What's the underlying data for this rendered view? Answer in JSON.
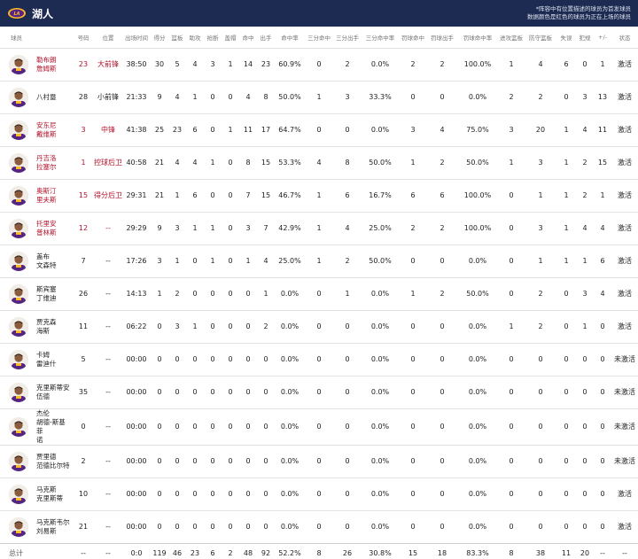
{
  "team": {
    "name": "湖人",
    "logo_icon": "lakers-logo-icon"
  },
  "notes": [
    "*阵容中有位置描述的球员为首发球员",
    "数据颜色是红色的球员为正在上场的球员"
  ],
  "columns": [
    "球员",
    "号码",
    "位置",
    "出场时间",
    "得分",
    "篮板",
    "助攻",
    "抢断",
    "盖帽",
    "命中",
    "出手",
    "命中率",
    "三分命中",
    "三分出手",
    "三分命中率",
    "罚球命中",
    "罚球出手",
    "罚球命中率",
    "进攻篮板",
    "防守篮板",
    "失误",
    "犯规",
    "+/-",
    "状态"
  ],
  "players": [
    {
      "name": "勒布朗\n詹姆斯",
      "number": "23",
      "position": "大前锋",
      "min": "38:50",
      "pts": "30",
      "reb": "5",
      "ast": "4",
      "stl": "3",
      "blk": "1",
      "fgm": "14",
      "fga": "23",
      "fgp": "60.9%",
      "tpm": "0",
      "tpa": "2",
      "tpp": "0.0%",
      "ftm": "2",
      "fta": "2",
      "ftp": "100.0%",
      "oreb": "1",
      "dreb": "4",
      "tov": "6",
      "pf": "0",
      "pm": "1",
      "status": "激活",
      "oncourt": true
    },
    {
      "name": "八村塁",
      "number": "28",
      "position": "小前锋",
      "min": "21:33",
      "pts": "9",
      "reb": "4",
      "ast": "1",
      "stl": "0",
      "blk": "0",
      "fgm": "4",
      "fga": "8",
      "fgp": "50.0%",
      "tpm": "1",
      "tpa": "3",
      "tpp": "33.3%",
      "ftm": "0",
      "fta": "0",
      "ftp": "0.0%",
      "oreb": "2",
      "dreb": "2",
      "tov": "0",
      "pf": "3",
      "pm": "13",
      "status": "激活",
      "oncourt": false
    },
    {
      "name": "安东尼\n戴维斯",
      "number": "3",
      "position": "中锋",
      "min": "41:38",
      "pts": "25",
      "reb": "23",
      "ast": "6",
      "stl": "0",
      "blk": "1",
      "fgm": "11",
      "fga": "17",
      "fgp": "64.7%",
      "tpm": "0",
      "tpa": "0",
      "tpp": "0.0%",
      "ftm": "3",
      "fta": "4",
      "ftp": "75.0%",
      "oreb": "3",
      "dreb": "20",
      "tov": "1",
      "pf": "4",
      "pm": "11",
      "status": "激活",
      "oncourt": true
    },
    {
      "name": "丹吉洛\n拉塞尔",
      "number": "1",
      "position": "控球后卫",
      "min": "40:58",
      "pts": "21",
      "reb": "4",
      "ast": "4",
      "stl": "1",
      "blk": "0",
      "fgm": "8",
      "fga": "15",
      "fgp": "53.3%",
      "tpm": "4",
      "tpa": "8",
      "tpp": "50.0%",
      "ftm": "1",
      "fta": "2",
      "ftp": "50.0%",
      "oreb": "1",
      "dreb": "3",
      "tov": "1",
      "pf": "2",
      "pm": "15",
      "status": "激活",
      "oncourt": true
    },
    {
      "name": "奥斯汀\n里夫斯",
      "number": "15",
      "position": "得分后卫",
      "min": "29:31",
      "pts": "21",
      "reb": "1",
      "ast": "6",
      "stl": "0",
      "blk": "0",
      "fgm": "7",
      "fga": "15",
      "fgp": "46.7%",
      "tpm": "1",
      "tpa": "6",
      "tpp": "16.7%",
      "ftm": "6",
      "fta": "6",
      "ftp": "100.0%",
      "oreb": "0",
      "dreb": "1",
      "tov": "1",
      "pf": "2",
      "pm": "1",
      "status": "激活",
      "oncourt": true
    },
    {
      "name": "托里安\n普林斯",
      "number": "12",
      "position": "--",
      "min": "29:29",
      "pts": "9",
      "reb": "3",
      "ast": "1",
      "stl": "1",
      "blk": "0",
      "fgm": "3",
      "fga": "7",
      "fgp": "42.9%",
      "tpm": "1",
      "tpa": "4",
      "tpp": "25.0%",
      "ftm": "2",
      "fta": "2",
      "ftp": "100.0%",
      "oreb": "0",
      "dreb": "3",
      "tov": "1",
      "pf": "4",
      "pm": "4",
      "status": "激活",
      "oncourt": true
    },
    {
      "name": "盖布\n文森特",
      "number": "7",
      "position": "--",
      "min": "17:26",
      "pts": "3",
      "reb": "1",
      "ast": "0",
      "stl": "1",
      "blk": "0",
      "fgm": "1",
      "fga": "4",
      "fgp": "25.0%",
      "tpm": "1",
      "tpa": "2",
      "tpp": "50.0%",
      "ftm": "0",
      "fta": "0",
      "ftp": "0.0%",
      "oreb": "0",
      "dreb": "1",
      "tov": "1",
      "pf": "1",
      "pm": "6",
      "status": "激活",
      "oncourt": false
    },
    {
      "name": "斯宾塞\n丁维迪",
      "number": "26",
      "position": "--",
      "min": "14:13",
      "pts": "1",
      "reb": "2",
      "ast": "0",
      "stl": "0",
      "blk": "0",
      "fgm": "0",
      "fga": "1",
      "fgp": "0.0%",
      "tpm": "0",
      "tpa": "1",
      "tpp": "0.0%",
      "ftm": "1",
      "fta": "2",
      "ftp": "50.0%",
      "oreb": "0",
      "dreb": "2",
      "tov": "0",
      "pf": "3",
      "pm": "4",
      "status": "激活",
      "oncourt": false
    },
    {
      "name": "贾克森\n海斯",
      "number": "11",
      "position": "--",
      "min": "06:22",
      "pts": "0",
      "reb": "3",
      "ast": "1",
      "stl": "0",
      "blk": "0",
      "fgm": "0",
      "fga": "2",
      "fgp": "0.0%",
      "tpm": "0",
      "tpa": "0",
      "tpp": "0.0%",
      "ftm": "0",
      "fta": "0",
      "ftp": "0.0%",
      "oreb": "1",
      "dreb": "2",
      "tov": "0",
      "pf": "1",
      "pm": "0",
      "status": "激活",
      "oncourt": false
    },
    {
      "name": "卡姆\n雷迪什",
      "number": "5",
      "position": "--",
      "min": "00:00",
      "pts": "0",
      "reb": "0",
      "ast": "0",
      "stl": "0",
      "blk": "0",
      "fgm": "0",
      "fga": "0",
      "fgp": "0.0%",
      "tpm": "0",
      "tpa": "0",
      "tpp": "0.0%",
      "ftm": "0",
      "fta": "0",
      "ftp": "0.0%",
      "oreb": "0",
      "dreb": "0",
      "tov": "0",
      "pf": "0",
      "pm": "0",
      "status": "未激活",
      "oncourt": false
    },
    {
      "name": "克里斯蒂安\n伍德",
      "number": "35",
      "position": "--",
      "min": "00:00",
      "pts": "0",
      "reb": "0",
      "ast": "0",
      "stl": "0",
      "blk": "0",
      "fgm": "0",
      "fga": "0",
      "fgp": "0.0%",
      "tpm": "0",
      "tpa": "0",
      "tpp": "0.0%",
      "ftm": "0",
      "fta": "0",
      "ftp": "0.0%",
      "oreb": "0",
      "dreb": "0",
      "tov": "0",
      "pf": "0",
      "pm": "0",
      "status": "未激活",
      "oncourt": false
    },
    {
      "name": "杰伦\n胡德-斯基菲\n诺",
      "number": "0",
      "position": "--",
      "min": "00:00",
      "pts": "0",
      "reb": "0",
      "ast": "0",
      "stl": "0",
      "blk": "0",
      "fgm": "0",
      "fga": "0",
      "fgp": "0.0%",
      "tpm": "0",
      "tpa": "0",
      "tpp": "0.0%",
      "ftm": "0",
      "fta": "0",
      "ftp": "0.0%",
      "oreb": "0",
      "dreb": "0",
      "tov": "0",
      "pf": "0",
      "pm": "0",
      "status": "未激活",
      "oncourt": false
    },
    {
      "name": "贾里德\n范德比尔特",
      "number": "2",
      "position": "--",
      "min": "00:00",
      "pts": "0",
      "reb": "0",
      "ast": "0",
      "stl": "0",
      "blk": "0",
      "fgm": "0",
      "fga": "0",
      "fgp": "0.0%",
      "tpm": "0",
      "tpa": "0",
      "tpp": "0.0%",
      "ftm": "0",
      "fta": "0",
      "ftp": "0.0%",
      "oreb": "0",
      "dreb": "0",
      "tov": "0",
      "pf": "0",
      "pm": "0",
      "status": "未激活",
      "oncourt": false
    },
    {
      "name": "马克斯\n克里斯蒂",
      "number": "10",
      "position": "--",
      "min": "00:00",
      "pts": "0",
      "reb": "0",
      "ast": "0",
      "stl": "0",
      "blk": "0",
      "fgm": "0",
      "fga": "0",
      "fgp": "0.0%",
      "tpm": "0",
      "tpa": "0",
      "tpp": "0.0%",
      "ftm": "0",
      "fta": "0",
      "ftp": "0.0%",
      "oreb": "0",
      "dreb": "0",
      "tov": "0",
      "pf": "0",
      "pm": "0",
      "status": "激活",
      "oncourt": false
    },
    {
      "name": "马克斯韦尔\n刘易斯",
      "number": "21",
      "position": "--",
      "min": "00:00",
      "pts": "0",
      "reb": "0",
      "ast": "0",
      "stl": "0",
      "blk": "0",
      "fgm": "0",
      "fga": "0",
      "fgp": "0.0%",
      "tpm": "0",
      "tpa": "0",
      "tpp": "0.0%",
      "ftm": "0",
      "fta": "0",
      "ftp": "0.0%",
      "oreb": "0",
      "dreb": "0",
      "tov": "0",
      "pf": "0",
      "pm": "0",
      "status": "激活",
      "oncourt": false
    }
  ],
  "totals": {
    "label": "总计",
    "number": "--",
    "position": "--",
    "min": "0:0",
    "pts": "119",
    "reb": "46",
    "ast": "23",
    "stl": "6",
    "blk": "2",
    "fgm": "48",
    "fga": "92",
    "fgp": "52.2%",
    "tpm": "8",
    "tpa": "26",
    "tpp": "30.8%",
    "ftm": "15",
    "fta": "18",
    "ftp": "83.3%",
    "oreb": "8",
    "dreb": "38",
    "tov": "11",
    "pf": "20",
    "pm": "--",
    "status": "--"
  },
  "colors": {
    "header_bg": "#1d2b52",
    "oncourt_text": "#b3122b",
    "lakers_purple": "#552583",
    "lakers_gold": "#fdb927"
  }
}
